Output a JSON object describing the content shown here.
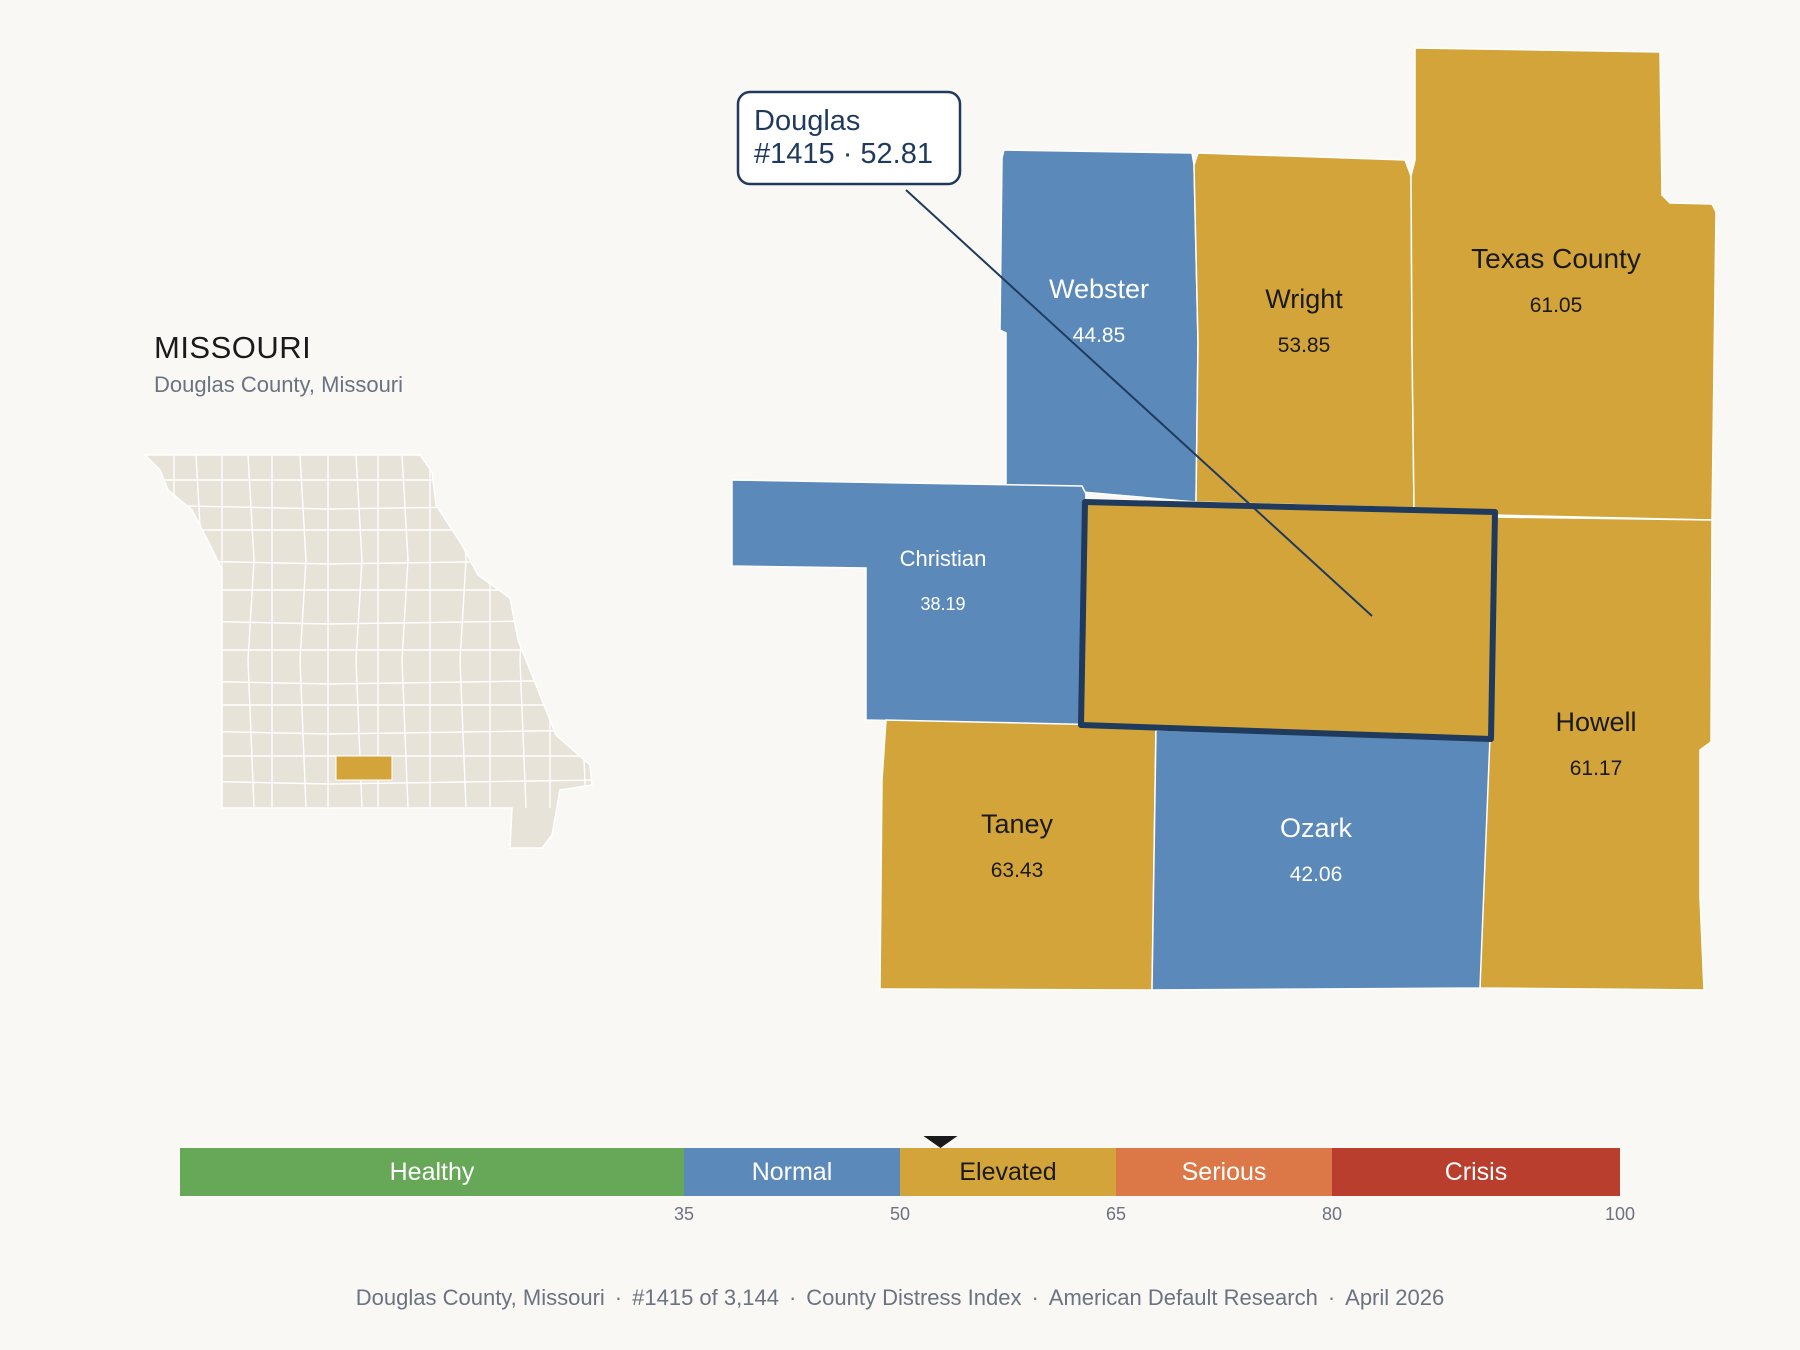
{
  "state": {
    "name": "MISSOURI",
    "subtitle": "Douglas County, Missouri"
  },
  "tooltip": {
    "name": "Douglas",
    "detail": "#1415 · 52.81"
  },
  "colors": {
    "background": "#f9f8f5",
    "healthy": "#67a758",
    "normal": "#5b89ba",
    "elevated": "#d3a43a",
    "serious": "#dc7848",
    "crisis": "#b93e2e",
    "inset_county": "#e8e3d8",
    "highlight_border": "#1f3a5c"
  },
  "counties": [
    {
      "id": "webster",
      "name": "Webster",
      "value": "44.85",
      "category": "normal"
    },
    {
      "id": "wright",
      "name": "Wright",
      "value": "53.85",
      "category": "elevated"
    },
    {
      "id": "texas",
      "name": "Texas County",
      "value": "61.05",
      "category": "elevated"
    },
    {
      "id": "christian",
      "name": "Christian",
      "value": "38.19",
      "category": "normal"
    },
    {
      "id": "douglas",
      "name": "Douglas",
      "value": "52.81",
      "category": "elevated",
      "selected": true
    },
    {
      "id": "howell",
      "name": "Howell",
      "value": "61.17",
      "category": "elevated"
    },
    {
      "id": "taney",
      "name": "Taney",
      "value": "63.43",
      "category": "elevated"
    },
    {
      "id": "ozark",
      "name": "Ozark",
      "value": "42.06",
      "category": "normal"
    }
  ],
  "legend": {
    "min": 0,
    "max": 100,
    "marker_value": 52.81,
    "segments": [
      {
        "label": "Healthy",
        "from": 0,
        "to": 35,
        "category": "healthy"
      },
      {
        "label": "Normal",
        "from": 35,
        "to": 50,
        "category": "normal"
      },
      {
        "label": "Elevated",
        "from": 50,
        "to": 65,
        "category": "elevated"
      },
      {
        "label": "Serious",
        "from": 65,
        "to": 80,
        "category": "serious"
      },
      {
        "label": "Crisis",
        "from": 80,
        "to": 100,
        "category": "crisis"
      }
    ],
    "ticks": [
      "35",
      "50",
      "65",
      "80",
      "100"
    ]
  },
  "footer": {
    "parts": [
      "Douglas County, Missouri",
      "#1415 of 3,144",
      "County Distress Index",
      "American Default Research",
      "April 2026"
    ],
    "separator": "·"
  }
}
